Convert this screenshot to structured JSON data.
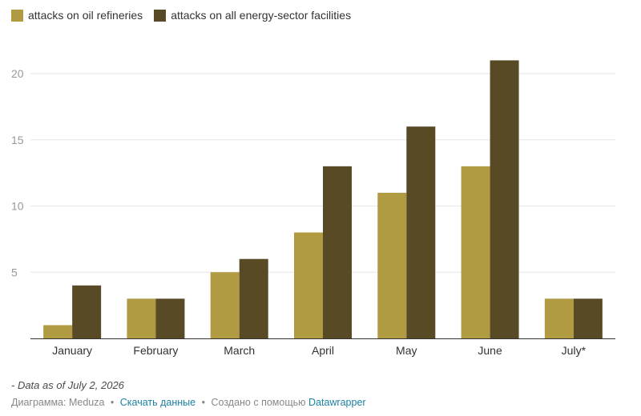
{
  "chart_data": {
    "type": "bar",
    "categories": [
      "January",
      "February",
      "March",
      "April",
      "May",
      "June",
      "July*"
    ],
    "series": [
      {
        "name": "attacks on oil refineries",
        "values": [
          1,
          3,
          5,
          8,
          11,
          13,
          3
        ],
        "color": "#b09a42"
      },
      {
        "name": "attacks on all energy-sector facilities",
        "values": [
          4,
          3,
          6,
          13,
          16,
          21,
          3
        ],
        "color": "#574a25"
      }
    ],
    "y_ticks": [
      5,
      10,
      15,
      20
    ],
    "ylim": [
      0,
      21
    ],
    "grid": true,
    "legend_position": "top-left",
    "xlabel": "",
    "ylabel": ""
  },
  "note": "- Data as of July 2, 2026",
  "footer": {
    "prefix": "Диаграмма: Meduza",
    "download_label": "Скачать данные",
    "created_with": "Создано с помощью",
    "tool_label": "Datawrapper",
    "separator": "•"
  },
  "colors": {
    "gridline": "#e6e6e6",
    "axis": "#333333",
    "tick_label": "#999999",
    "category_label": "#333333",
    "link": "#1d81a2"
  }
}
